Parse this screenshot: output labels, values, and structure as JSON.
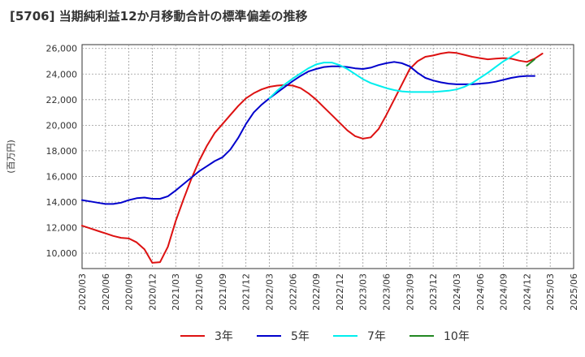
{
  "chart_data": {
    "type": "line",
    "title": "[5706]  当期純利益12か月移動合計の標準偏差の推移",
    "ylabel": "(百万円)",
    "xlabel": "",
    "ylim": [
      8800,
      26300
    ],
    "y_ticks": [
      10000,
      12000,
      14000,
      16000,
      18000,
      20000,
      22000,
      24000,
      26000
    ],
    "y_tick_labels": [
      "10,000",
      "12,000",
      "14,000",
      "16,000",
      "18,000",
      "20,000",
      "22,000",
      "24,000",
      "26,000"
    ],
    "x_start": "2020/03",
    "x_tick_labels": [
      "2020/03",
      "2020/06",
      "2020/09",
      "2020/12",
      "2021/03",
      "2021/06",
      "2021/09",
      "2021/12",
      "2022/03",
      "2022/06",
      "2022/09",
      "2022/12",
      "2023/03",
      "2023/06",
      "2023/09",
      "2023/12",
      "2024/03",
      "2024/06",
      "2024/09",
      "2024/12",
      "2025/03",
      "2025/06"
    ],
    "grid": true,
    "legend_position": "bottom",
    "series": [
      {
        "name": "3年",
        "color": "#dd1111",
        "start_index": 0,
        "values": [
          12150,
          11950,
          11750,
          11550,
          11350,
          11200,
          11150,
          10850,
          10300,
          9250,
          9300,
          10500,
          12500,
          14200,
          15800,
          17200,
          18400,
          19400,
          20100,
          20800,
          21500,
          22100,
          22500,
          22800,
          23000,
          23100,
          23150,
          23100,
          22900,
          22500,
          22000,
          21400,
          20800,
          20200,
          19600,
          19150,
          18950,
          19050,
          19700,
          20800,
          22000,
          23200,
          24400,
          25000,
          25350,
          25450,
          25600,
          25700,
          25650,
          25500,
          25350,
          25250,
          25150,
          25200,
          25250,
          25200,
          25050,
          24950,
          25200,
          25600
        ]
      },
      {
        "name": "5年",
        "color": "#0000cc",
        "start_index": 0,
        "values": [
          14150,
          14050,
          13950,
          13850,
          13850,
          13950,
          14150,
          14300,
          14350,
          14250,
          14250,
          14450,
          14900,
          15400,
          15900,
          16400,
          16800,
          17200,
          17500,
          18100,
          19000,
          20100,
          21000,
          21600,
          22100,
          22550,
          23000,
          23450,
          23850,
          24200,
          24400,
          24550,
          24600,
          24600,
          24550,
          24450,
          24400,
          24500,
          24700,
          24850,
          24950,
          24850,
          24600,
          24100,
          23700,
          23500,
          23350,
          23250,
          23200,
          23200,
          23200,
          23250,
          23300,
          23400,
          23550,
          23700,
          23800,
          23850,
          23850
        ]
      },
      {
        "name": "7年",
        "color": "#00eeee",
        "start_index": 24,
        "values": [
          22100,
          22700,
          23200,
          23650,
          24050,
          24450,
          24750,
          24900,
          24900,
          24700,
          24400,
          24000,
          23600,
          23300,
          23100,
          22900,
          22750,
          22650,
          22600,
          22600,
          22600,
          22600,
          22650,
          22700,
          22800,
          23000,
          23300,
          23700,
          24100,
          24550,
          25000,
          25350,
          25750
        ]
      },
      {
        "name": "10年",
        "color": "#228822",
        "start_index": 57,
        "values": [
          24650,
          25150
        ]
      }
    ]
  }
}
